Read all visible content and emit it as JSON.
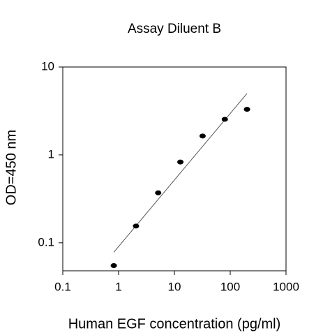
{
  "chart_data": {
    "type": "scatter",
    "title": "Assay Diluent B",
    "x_label": "Human EGF concentration (pg/ml)",
    "y_label": "OD=450 nm",
    "xscale": "log",
    "yscale": "log",
    "xlim": [
      0.1,
      1000
    ],
    "xticks": [
      0.1,
      1,
      10,
      100,
      1000
    ],
    "ylim": [
      0.048,
      10
    ],
    "yticks": [
      0.1,
      1,
      10
    ],
    "x": [
      0.82,
      2.05,
      5.12,
      12.8,
      32,
      80,
      200
    ],
    "values": [
      0.055,
      0.155,
      0.37,
      0.83,
      1.64,
      2.54,
      3.3
    ],
    "color": "#000000",
    "fit": {
      "x": [
        0.82,
        200
      ],
      "values": [
        0.078,
        5.0
      ],
      "color": "#555555"
    }
  }
}
